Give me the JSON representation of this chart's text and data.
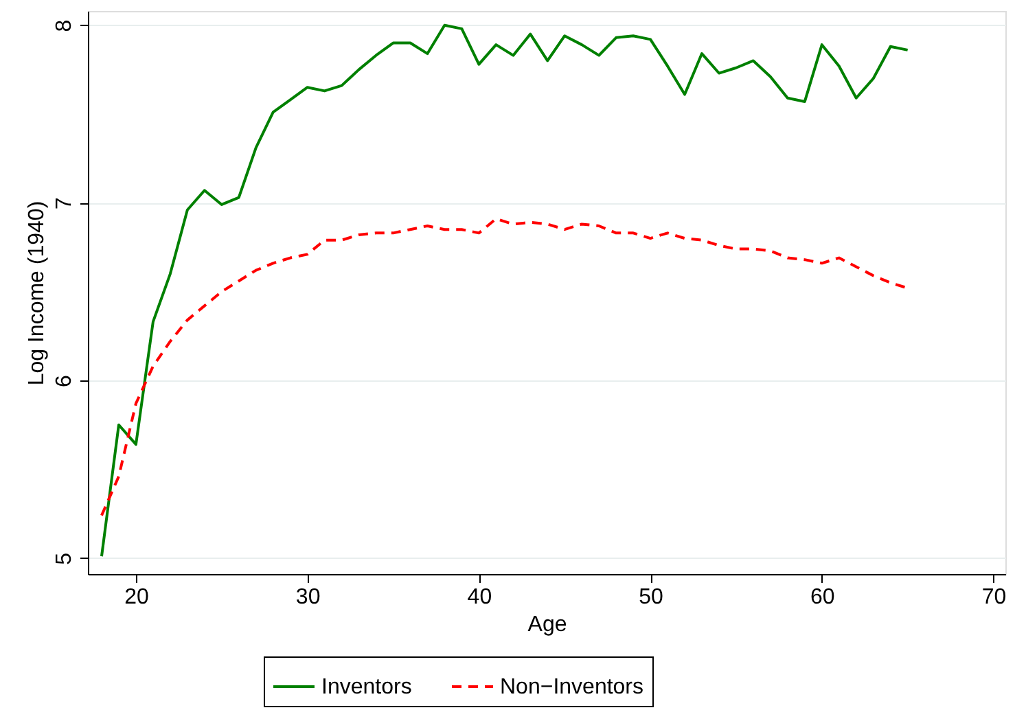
{
  "chart_data": {
    "type": "line",
    "xlabel": "Age",
    "ylabel": "Log Income (1940)",
    "x": [
      18,
      19,
      20,
      21,
      22,
      23,
      24,
      25,
      26,
      27,
      28,
      29,
      30,
      31,
      32,
      33,
      34,
      35,
      36,
      37,
      38,
      39,
      40,
      41,
      42,
      43,
      44,
      45,
      46,
      47,
      48,
      49,
      50,
      51,
      52,
      53,
      54,
      55,
      56,
      57,
      58,
      59,
      60,
      61,
      62,
      63,
      64,
      65
    ],
    "series": [
      {
        "name": "Inventors",
        "color": "#008000",
        "line_style": "solid",
        "values": [
          5.01,
          5.75,
          5.64,
          6.33,
          6.6,
          6.96,
          7.07,
          6.99,
          7.03,
          7.31,
          7.51,
          7.58,
          7.65,
          7.63,
          7.66,
          7.75,
          7.83,
          7.9,
          7.9,
          7.84,
          8.0,
          7.98,
          7.78,
          7.89,
          7.83,
          7.95,
          7.8,
          7.94,
          7.89,
          7.83,
          7.93,
          7.94,
          7.92,
          7.77,
          7.61,
          7.84,
          7.73,
          7.76,
          7.8,
          7.71,
          7.59,
          7.57,
          7.89,
          7.77,
          7.59,
          7.7,
          7.88,
          7.86
        ]
      },
      {
        "name": "Non−Inventors",
        "color": "#ff0000",
        "line_style": "dashed",
        "values": [
          5.24,
          5.46,
          5.87,
          6.08,
          6.22,
          6.34,
          6.42,
          6.5,
          6.56,
          6.62,
          6.66,
          6.69,
          6.71,
          6.79,
          6.79,
          6.82,
          6.83,
          6.83,
          6.85,
          6.87,
          6.85,
          6.85,
          6.83,
          6.91,
          6.88,
          6.89,
          6.88,
          6.85,
          6.88,
          6.87,
          6.83,
          6.83,
          6.8,
          6.83,
          6.8,
          6.79,
          6.76,
          6.74,
          6.74,
          6.73,
          6.69,
          6.68,
          6.66,
          6.69,
          6.64,
          6.59,
          6.55,
          6.52
        ]
      }
    ],
    "xlim": [
      17.2,
      70.7
    ],
    "xticks": [
      20,
      30,
      40,
      50,
      60,
      70
    ],
    "ylim": [
      4.91,
      8.08
    ],
    "yticks": [
      5,
      6,
      7,
      8
    ],
    "grid": "y",
    "legend": "bottom"
  }
}
